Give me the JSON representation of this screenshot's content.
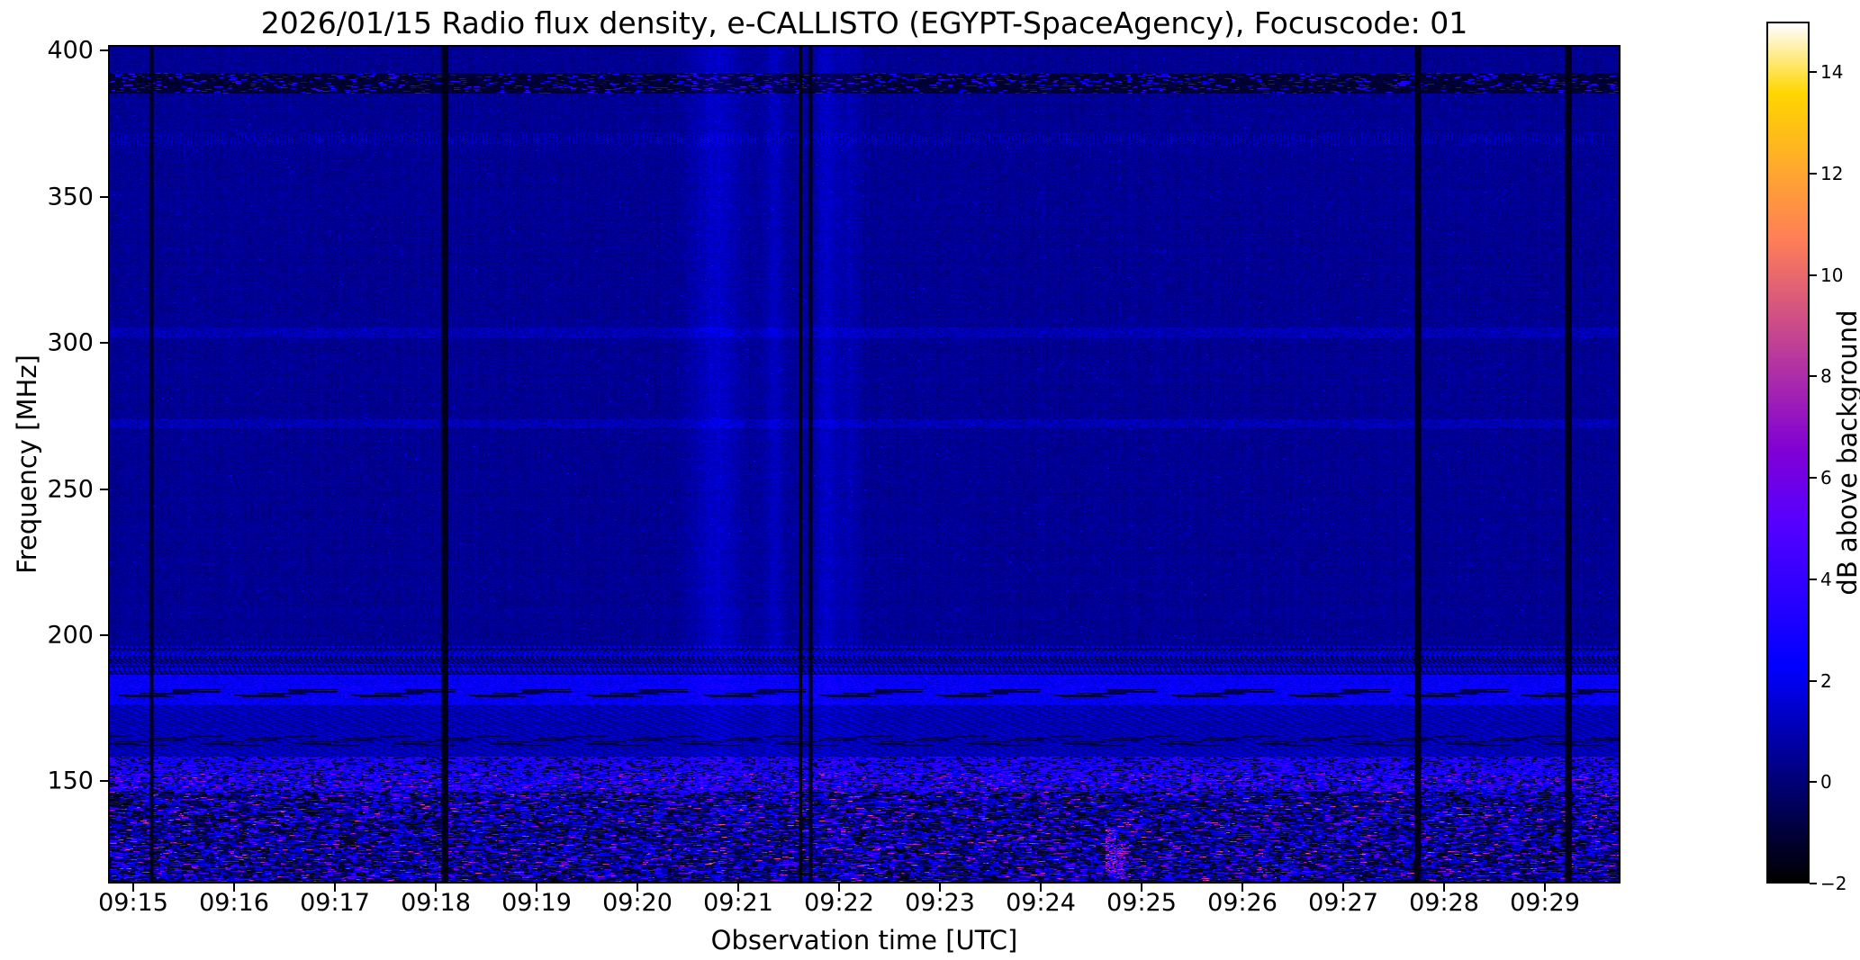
{
  "chart_data": {
    "type": "heatmap",
    "title": "2026/01/15  Radio flux density, e-CALLISTO (EGYPT-SpaceAgency), Focuscode: 01",
    "xlabel": "Observation time [UTC]",
    "ylabel": "Frequency [MHz]",
    "x_ticks": [
      "09:15",
      "09:16",
      "09:17",
      "09:18",
      "09:19",
      "09:20",
      "09:21",
      "09:22",
      "09:23",
      "09:24",
      "09:25",
      "09:26",
      "09:27",
      "09:28",
      "09:29"
    ],
    "time_window": [
      "09:14:45",
      "09:29:45"
    ],
    "y_ticks": [
      150,
      200,
      250,
      300,
      350,
      400
    ],
    "ylim": [
      115,
      402
    ],
    "grid": false,
    "legend": "none",
    "colorbar": {
      "label": "dB above background",
      "ticks": [
        -2,
        0,
        2,
        4,
        6,
        8,
        10,
        12,
        14
      ],
      "vmin": -2,
      "vmax": 15,
      "colormap": "gnuplot2"
    },
    "background_level_db": 0.5,
    "features": {
      "rfi_bands": [
        {
          "f1": 386,
          "f2": 393,
          "style": "dark"
        },
        {
          "f1": 368,
          "f2": 372.5,
          "style": "fine"
        },
        {
          "f1": 302,
          "f2": 305.5,
          "style": "faint"
        },
        {
          "f1": 271,
          "f2": 274,
          "style": "faint"
        },
        {
          "f1": 186,
          "f2": 196,
          "style": "rows"
        },
        {
          "f1": 176,
          "f2": 186,
          "style": "bright"
        },
        {
          "f1": 158,
          "f2": 176,
          "style": "texture"
        },
        {
          "f1": 146,
          "f2": 158,
          "style": "hot"
        },
        {
          "f1": 115,
          "f2": 146,
          "style": "floor"
        }
      ],
      "dark_columns": [
        {
          "t": "09:15:10",
          "w": 2
        },
        {
          "t": "09:18:05",
          "w": 3
        },
        {
          "t": "09:21:37",
          "w": 2
        },
        {
          "t": "09:21:43",
          "w": 2
        },
        {
          "t": "09:27:45",
          "w": 4
        },
        {
          "t": "09:29:15",
          "w": 4
        }
      ],
      "bright_columns": [
        {
          "t": "09:20:47",
          "amp": 0.9,
          "sigma": 10
        },
        {
          "t": "09:21:21",
          "amp": 0.7,
          "sigma": 4
        },
        {
          "t": "09:21:53",
          "amp": 0.8,
          "sigma": 5
        },
        {
          "t": "09:22:07",
          "amp": 0.5,
          "sigma": 4
        }
      ],
      "bright_spots": [
        {
          "t": "09:24:42",
          "f1": 118,
          "f2": 133,
          "amp": 9
        },
        {
          "t": "09:24:48",
          "f1": 116,
          "f2": 128,
          "amp": 8
        }
      ]
    }
  }
}
